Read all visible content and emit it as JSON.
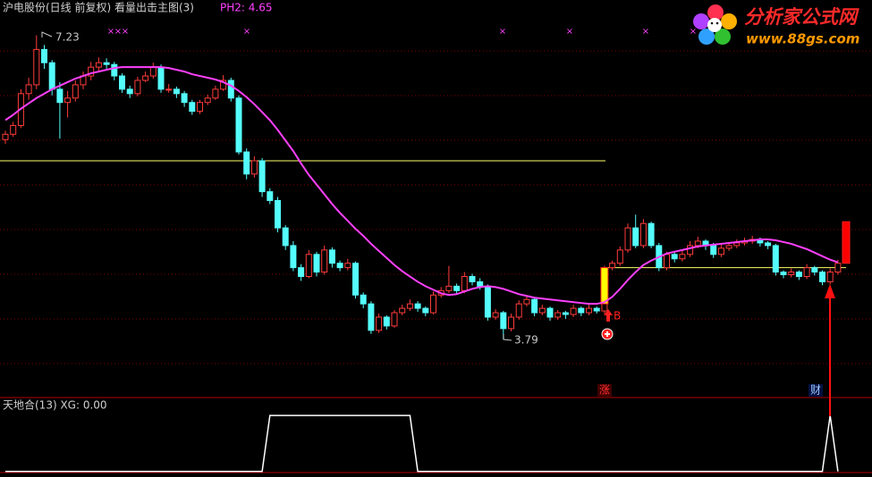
{
  "chart_data": [
    {
      "type": "candlestick",
      "title": "沪电股份(日线 前复权) 看量出击主图(3)",
      "annotation": "PH2: 4.65",
      "high_label": 7.23,
      "low_label": 3.79,
      "buy_label": "B",
      "tags": [
        "涨",
        "财"
      ],
      "ylim": [
        3.13,
        7.63
      ],
      "up_color": "#ff3c3c",
      "down_color": "#54fcfc",
      "reference_color": "#ffff66",
      "reference_lines": [
        5.81,
        4.6
      ],
      "signals": [
        {
          "low": 4.19,
          "high": 4.6,
          "color": "#ffff00"
        },
        {
          "low": 4.65,
          "high": 5.12,
          "color": "#ff0000"
        }
      ],
      "candles": [
        [
          6.05,
          6.15,
          6.0,
          6.11
        ],
        [
          6.11,
          6.25,
          6.08,
          6.21
        ],
        [
          6.21,
          6.62,
          6.18,
          6.57
        ],
        [
          6.57,
          6.75,
          6.5,
          6.67
        ],
        [
          6.67,
          7.23,
          6.62,
          7.07
        ],
        [
          7.07,
          7.12,
          6.85,
          6.92
        ],
        [
          6.92,
          6.95,
          6.55,
          6.62
        ],
        [
          6.62,
          6.7,
          6.06,
          6.47
        ],
        [
          6.47,
          6.6,
          6.3,
          6.52
        ],
        [
          6.52,
          6.72,
          6.48,
          6.67
        ],
        [
          6.67,
          6.82,
          6.62,
          6.77
        ],
        [
          6.77,
          6.93,
          6.72,
          6.87
        ],
        [
          6.87,
          6.98,
          6.82,
          6.92
        ],
        [
          6.92,
          6.97,
          6.85,
          6.9
        ],
        [
          6.9,
          6.93,
          6.72,
          6.77
        ],
        [
          6.77,
          6.8,
          6.58,
          6.62
        ],
        [
          6.62,
          6.66,
          6.52,
          6.57
        ],
        [
          6.57,
          6.76,
          6.54,
          6.72
        ],
        [
          6.72,
          6.82,
          6.7,
          6.77
        ],
        [
          6.77,
          6.92,
          6.74,
          6.87
        ],
        [
          6.87,
          6.9,
          6.58,
          6.62
        ],
        [
          6.62,
          6.68,
          6.58,
          6.62
        ],
        [
          6.62,
          6.65,
          6.52,
          6.57
        ],
        [
          6.57,
          6.6,
          6.42,
          6.47
        ],
        [
          6.47,
          6.5,
          6.33,
          6.37
        ],
        [
          6.37,
          6.5,
          6.34,
          6.47
        ],
        [
          6.47,
          6.56,
          6.44,
          6.52
        ],
        [
          6.52,
          6.66,
          6.5,
          6.62
        ],
        [
          6.62,
          6.78,
          6.6,
          6.72
        ],
        [
          6.72,
          6.75,
          6.48,
          6.52
        ],
        [
          6.52,
          6.55,
          5.88,
          5.91
        ],
        [
          5.91,
          5.95,
          5.6,
          5.66
        ],
        [
          5.66,
          5.86,
          5.62,
          5.81
        ],
        [
          5.81,
          5.84,
          5.4,
          5.46
        ],
        [
          5.46,
          5.5,
          5.32,
          5.36
        ],
        [
          5.36,
          5.4,
          5.0,
          5.05
        ],
        [
          5.05,
          5.08,
          4.8,
          4.85
        ],
        [
          4.85,
          4.9,
          4.56,
          4.6
        ],
        [
          4.6,
          4.64,
          4.45,
          4.5
        ],
        [
          4.5,
          4.8,
          4.48,
          4.75
        ],
        [
          4.75,
          4.78,
          4.5,
          4.55
        ],
        [
          4.55,
          4.85,
          4.52,
          4.8
        ],
        [
          4.8,
          4.83,
          4.6,
          4.65
        ],
        [
          4.65,
          4.68,
          4.56,
          4.6
        ],
        [
          4.6,
          4.7,
          4.57,
          4.65
        ],
        [
          4.65,
          4.67,
          4.25,
          4.29
        ],
        [
          4.29,
          4.32,
          4.14,
          4.19
        ],
        [
          4.19,
          4.22,
          3.85,
          3.89
        ],
        [
          3.89,
          4.08,
          3.86,
          4.04
        ],
        [
          4.04,
          4.06,
          3.9,
          3.94
        ],
        [
          3.94,
          4.12,
          3.92,
          4.09
        ],
        [
          4.09,
          4.18,
          4.06,
          4.14
        ],
        [
          4.14,
          4.24,
          4.11,
          4.19
        ],
        [
          4.19,
          4.22,
          4.1,
          4.14
        ],
        [
          4.14,
          4.16,
          4.05,
          4.09
        ],
        [
          4.09,
          4.33,
          4.07,
          4.29
        ],
        [
          4.29,
          4.38,
          4.26,
          4.34
        ],
        [
          4.34,
          4.62,
          4.31,
          4.39
        ],
        [
          4.39,
          4.42,
          4.3,
          4.34
        ],
        [
          4.34,
          4.55,
          4.31,
          4.5
        ],
        [
          4.5,
          4.53,
          4.4,
          4.44
        ],
        [
          4.44,
          4.48,
          4.35,
          4.39
        ],
        [
          4.39,
          4.41,
          4.0,
          4.04
        ],
        [
          4.04,
          4.13,
          4.01,
          4.09
        ],
        [
          4.09,
          4.11,
          3.79,
          3.91
        ],
        [
          3.91,
          4.08,
          3.88,
          4.04
        ],
        [
          4.04,
          4.23,
          4.01,
          4.19
        ],
        [
          4.19,
          4.28,
          4.16,
          4.24
        ],
        [
          4.24,
          4.26,
          4.05,
          4.09
        ],
        [
          4.09,
          4.18,
          4.06,
          4.14
        ],
        [
          4.14,
          4.16,
          4.0,
          4.04
        ],
        [
          4.04,
          4.12,
          4.01,
          4.09
        ],
        [
          4.09,
          4.11,
          4.02,
          4.07
        ],
        [
          4.07,
          4.18,
          4.04,
          4.14
        ],
        [
          4.14,
          4.16,
          4.05,
          4.09
        ],
        [
          4.09,
          4.18,
          4.06,
          4.14
        ],
        [
          4.14,
          4.16,
          4.08,
          4.11
        ],
        [
          4.11,
          4.62,
          4.08,
          4.6
        ],
        [
          4.6,
          4.68,
          4.57,
          4.65
        ],
        [
          4.65,
          4.84,
          4.62,
          4.8
        ],
        [
          4.8,
          5.1,
          4.77,
          5.05
        ],
        [
          5.05,
          5.2,
          4.82,
          4.85
        ],
        [
          4.85,
          5.15,
          4.82,
          5.1
        ],
        [
          5.1,
          5.12,
          4.82,
          4.85
        ],
        [
          4.85,
          4.88,
          4.56,
          4.6
        ],
        [
          4.6,
          4.78,
          4.57,
          4.75
        ],
        [
          4.75,
          4.78,
          4.66,
          4.7
        ],
        [
          4.7,
          4.8,
          4.67,
          4.75
        ],
        [
          4.75,
          4.9,
          4.72,
          4.85
        ],
        [
          4.85,
          4.95,
          4.82,
          4.9
        ],
        [
          4.9,
          4.92,
          4.8,
          4.85
        ],
        [
          4.85,
          4.88,
          4.71,
          4.75
        ],
        [
          4.75,
          4.86,
          4.72,
          4.82
        ],
        [
          4.82,
          4.89,
          4.79,
          4.85
        ],
        [
          4.85,
          4.92,
          4.82,
          4.88
        ],
        [
          4.88,
          4.94,
          4.85,
          4.9
        ],
        [
          4.9,
          4.96,
          4.87,
          4.92
        ],
        [
          4.92,
          4.94,
          4.84,
          4.88
        ],
        [
          4.88,
          4.9,
          4.81,
          4.85
        ],
        [
          4.85,
          4.87,
          4.51,
          4.55
        ],
        [
          4.55,
          4.57,
          4.48,
          4.52
        ],
        [
          4.52,
          4.59,
          4.49,
          4.55
        ],
        [
          4.55,
          4.57,
          4.46,
          4.5
        ],
        [
          4.5,
          4.64,
          4.47,
          4.6
        ],
        [
          4.6,
          4.62,
          4.51,
          4.55
        ],
        [
          4.55,
          4.57,
          4.4,
          4.44
        ],
        [
          4.44,
          4.59,
          4.41,
          4.55
        ],
        [
          4.55,
          4.69,
          4.52,
          4.65
        ]
      ],
      "series": [
        {
          "color": "#ff40ff",
          "values": [
            6.27,
            6.33,
            6.4,
            6.46,
            6.52,
            6.57,
            6.62,
            6.66,
            6.7,
            6.74,
            6.77,
            6.8,
            6.82,
            6.84,
            6.86,
            6.87,
            6.87,
            6.87,
            6.87,
            6.87,
            6.87,
            6.86,
            6.84,
            6.82,
            6.79,
            6.77,
            6.75,
            6.73,
            6.7,
            6.66,
            6.6,
            6.53,
            6.45,
            6.36,
            6.27,
            6.16,
            6.04,
            5.92,
            5.78,
            5.65,
            5.54,
            5.43,
            5.32,
            5.22,
            5.13,
            5.04,
            4.96,
            4.87,
            4.79,
            4.71,
            4.63,
            4.56,
            4.5,
            4.44,
            4.39,
            4.35,
            4.31,
            4.29,
            4.3,
            4.33,
            4.36,
            4.38,
            4.39,
            4.38,
            4.36,
            4.33,
            4.3,
            4.28,
            4.26,
            4.25,
            4.24,
            4.23,
            4.22,
            4.21,
            4.2,
            4.19,
            4.19,
            4.21,
            4.27,
            4.36,
            4.46,
            4.55,
            4.63,
            4.68,
            4.72,
            4.76,
            4.78,
            4.8,
            4.82,
            4.84,
            4.85,
            4.86,
            4.87,
            4.88,
            4.89,
            4.9,
            4.91,
            4.92,
            4.92,
            4.91,
            4.89,
            4.87,
            4.84,
            4.81,
            4.77,
            4.73,
            4.69,
            4.66
          ]
        }
      ]
    },
    {
      "type": "line",
      "title": "天地合(13) XG: 0.00",
      "ylim": [
        -0.1,
        1.29
      ],
      "color": "#ffffff",
      "values": [
        0,
        0,
        0,
        0,
        0,
        0,
        0,
        0,
        0,
        0,
        0,
        0,
        0,
        0,
        0,
        0,
        0,
        0,
        0,
        0,
        0,
        0,
        0,
        0,
        0,
        0,
        0,
        0,
        0,
        0,
        0,
        0,
        0,
        0,
        1,
        1,
        1,
        1,
        1,
        1,
        1,
        1,
        1,
        1,
        1,
        1,
        1,
        1,
        1,
        1,
        1,
        1,
        1,
        0,
        0,
        0,
        0,
        0,
        0,
        0,
        0,
        0,
        0,
        0,
        0,
        0,
        0,
        0,
        0,
        0,
        0,
        0,
        0,
        0,
        0,
        0,
        0,
        0,
        0,
        0,
        0,
        0,
        0,
        0,
        0,
        0,
        0,
        0,
        0,
        0,
        0,
        0,
        0,
        0,
        0,
        0,
        0,
        0,
        0,
        0,
        0,
        0,
        0,
        0,
        0,
        0,
        1,
        0
      ]
    }
  ],
  "logo": {
    "title": "分析家公式网",
    "url": "www.88gs.com"
  }
}
